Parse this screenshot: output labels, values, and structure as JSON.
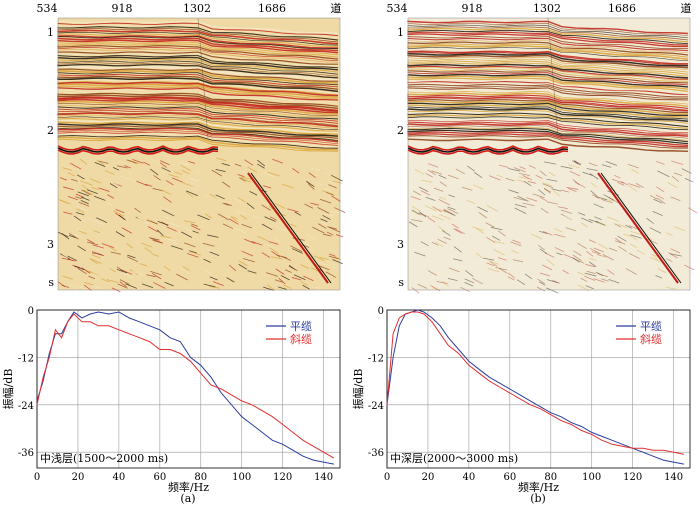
{
  "sections": [
    {
      "label": "(a)",
      "seismic": {
        "trace_ticks": [
          "534",
          "918",
          "1302",
          "1686"
        ],
        "trace_unit": "道",
        "time_ticks": [
          "1",
          "2",
          "3"
        ],
        "time_unit": "s"
      },
      "chart_data": {
        "type": "line",
        "xlabel": "频率/Hz",
        "ylabel": "振幅/dB",
        "xlim": [
          0,
          148
        ],
        "ylim": [
          -40,
          0
        ],
        "xticks": [
          0,
          20,
          40,
          60,
          80,
          100,
          120,
          140
        ],
        "yticks": [
          0,
          -12,
          -24,
          -36
        ],
        "grid": true,
        "legend_position": "top-right",
        "annotation": "中浅层(1500～2000 ms)",
        "colors": {
          "平缆": "#2c3e9e",
          "斜缆": "#e03030"
        },
        "series": [
          {
            "name": "平缆",
            "x": [
              0,
              3,
              6,
              9,
              12,
              15,
              18,
              22,
              26,
              30,
              35,
              40,
              45,
              50,
              55,
              60,
              65,
              70,
              75,
              80,
              85,
              90,
              95,
              100,
              105,
              110,
              115,
              120,
              125,
              130,
              135,
              140,
              145
            ],
            "y": [
              -23,
              -18,
              -11,
              -6,
              -6,
              -3,
              -0.5,
              -2,
              -1,
              -0.5,
              -1,
              -0.5,
              -2,
              -3,
              -4,
              -5,
              -7,
              -8,
              -12,
              -14,
              -17,
              -21,
              -24,
              -27,
              -29,
              -31,
              -33,
              -34,
              -35.5,
              -37,
              -38,
              -38.5,
              -39
            ]
          },
          {
            "name": "斜缆",
            "x": [
              0,
              3,
              6,
              9,
              12,
              15,
              18,
              22,
              26,
              30,
              35,
              40,
              45,
              50,
              55,
              60,
              65,
              70,
              75,
              80,
              85,
              90,
              95,
              100,
              105,
              110,
              115,
              120,
              125,
              130,
              135,
              140,
              145
            ],
            "y": [
              -24,
              -17,
              -12,
              -5,
              -7,
              -3,
              -1,
              -3,
              -3,
              -4,
              -4,
              -5,
              -6,
              -7,
              -8,
              -10,
              -10,
              -11,
              -13,
              -16,
              -19,
              -20,
              -21.5,
              -23,
              -24,
              -25.5,
              -27,
              -29,
              -31,
              -33,
              -34.5,
              -36,
              -37.5
            ]
          }
        ]
      }
    },
    {
      "label": "(b)",
      "seismic": {
        "trace_ticks": [
          "534",
          "918",
          "1302",
          "1686"
        ],
        "trace_unit": "道",
        "time_ticks": [
          "1",
          "2",
          "3"
        ],
        "time_unit": "s"
      },
      "chart_data": {
        "type": "line",
        "xlabel": "频率/Hz",
        "ylabel": "振幅/dB",
        "xlim": [
          0,
          148
        ],
        "ylim": [
          -40,
          0
        ],
        "xticks": [
          0,
          20,
          40,
          60,
          80,
          100,
          120,
          140
        ],
        "yticks": [
          0,
          -12,
          -24,
          -36
        ],
        "grid": true,
        "legend_position": "top-right",
        "annotation": "中深层(2000～3000 ms)",
        "colors": {
          "平缆": "#2c3e9e",
          "斜缆": "#e03030"
        },
        "series": [
          {
            "name": "平缆",
            "x": [
              0,
              3,
              6,
              9,
              12,
              15,
              18,
              22,
              26,
              30,
              35,
              40,
              45,
              50,
              55,
              60,
              65,
              70,
              75,
              80,
              85,
              90,
              95,
              100,
              105,
              110,
              115,
              120,
              125,
              130,
              135,
              140,
              145
            ],
            "y": [
              -24,
              -12,
              -4,
              -1,
              -0.5,
              0,
              -0.5,
              -2,
              -4,
              -7,
              -10,
              -13,
              -15,
              -17,
              -18.5,
              -20,
              -21.5,
              -23,
              -24.5,
              -26,
              -27,
              -28.5,
              -29.5,
              -31,
              -32,
              -33,
              -34,
              -35,
              -36,
              -37,
              -38,
              -38.5,
              -39
            ]
          },
          {
            "name": "斜缆",
            "x": [
              0,
              3,
              6,
              9,
              12,
              15,
              18,
              22,
              26,
              30,
              35,
              40,
              45,
              50,
              55,
              60,
              65,
              70,
              75,
              80,
              85,
              90,
              95,
              100,
              105,
              110,
              115,
              120,
              125,
              130,
              135,
              140,
              145
            ],
            "y": [
              -24,
              -6,
              -2,
              -1,
              -0.5,
              -0.5,
              -1,
              -3,
              -6,
              -9,
              -11,
              -14,
              -16,
              -18,
              -19.5,
              -21,
              -22.5,
              -24,
              -25,
              -26.5,
              -28,
              -29,
              -30.5,
              -31.5,
              -33,
              -34,
              -34.5,
              -35,
              -35,
              -35.5,
              -35.5,
              -36,
              -36.5
            ]
          }
        ]
      }
    }
  ]
}
